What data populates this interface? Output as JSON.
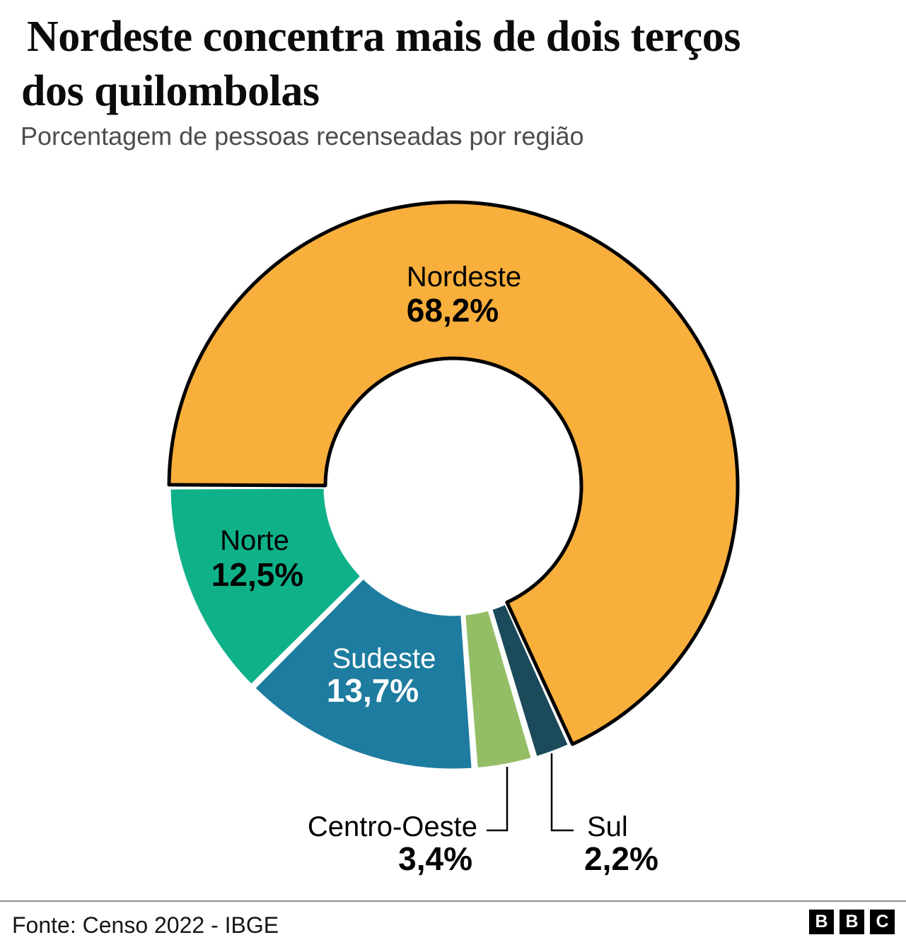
{
  "header": {
    "title_line1": "Nordeste concentra mais de dois terços",
    "title_line2": "dos quilombolas",
    "subtitle": "Porcentagem de pessoas recenseadas por região"
  },
  "chart_data": {
    "type": "pie",
    "variant": "donut",
    "title": "Nordeste concentra mais de dois terços dos quilombolas",
    "subtitle": "Porcentagem de pessoas recenseadas por região",
    "unit": "%",
    "start_position": "left, clockwise",
    "segments": [
      {
        "label": "Nordeste",
        "value": 68.2,
        "display": "68,2%",
        "color": "#F8AF3B",
        "outlined": true
      },
      {
        "label": "Sul",
        "value": 2.2,
        "display": "2,2%",
        "color": "#1B4B5A",
        "outlined": false
      },
      {
        "label": "Centro-Oeste",
        "value": 3.4,
        "display": "3,4%",
        "color": "#94BE66",
        "outlined": false
      },
      {
        "label": "Sudeste",
        "value": 13.7,
        "display": "13,7%",
        "color": "#1D7C9F",
        "outlined": false
      },
      {
        "label": "Norte",
        "value": 12.5,
        "display": "12,5%",
        "color": "#0FB189",
        "outlined": false
      }
    ]
  },
  "footer": {
    "source": "Fonte: Censo 2022 - IBGE",
    "logo_letters": [
      "B",
      "B",
      "C"
    ]
  }
}
